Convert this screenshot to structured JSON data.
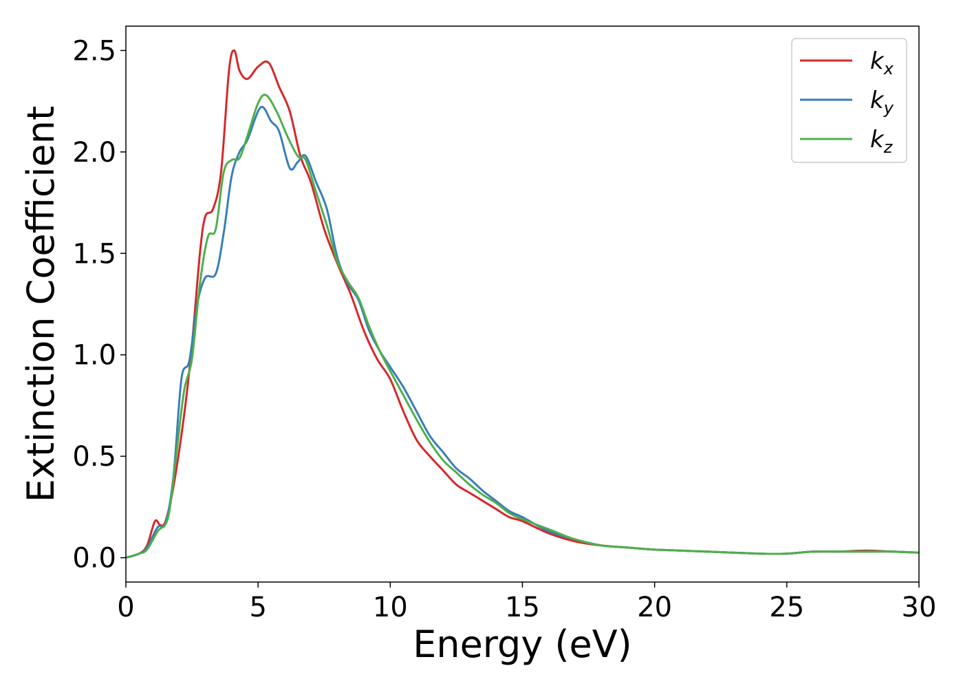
{
  "chart_data": {
    "type": "line",
    "title": "",
    "xlabel": "Energy (eV)",
    "ylabel": "Extinction Coefficient",
    "xlim": [
      0,
      30
    ],
    "ylim": [
      -0.12,
      2.62
    ],
    "xticks": [
      0,
      5,
      10,
      15,
      20,
      25,
      30
    ],
    "xtick_labels": [
      "0",
      "5",
      "10",
      "15",
      "20",
      "25",
      "30"
    ],
    "yticks": [
      0.0,
      0.5,
      1.0,
      1.5,
      2.0,
      2.5
    ],
    "ytick_labels": [
      "0.0",
      "0.5",
      "1.0",
      "1.5",
      "2.0",
      "2.5"
    ],
    "grid": false,
    "legend": {
      "position": "top-right",
      "entries": [
        {
          "base": "k",
          "sub": "x"
        },
        {
          "base": "k",
          "sub": "y"
        },
        {
          "base": "k",
          "sub": "z"
        }
      ]
    },
    "series": [
      {
        "name": "k_x",
        "color": "#d62728",
        "points": [
          [
            0,
            0
          ],
          [
            0.5,
            0.02
          ],
          [
            0.8,
            0.06
          ],
          [
            1.1,
            0.18
          ],
          [
            1.3,
            0.16
          ],
          [
            1.5,
            0.18
          ],
          [
            1.8,
            0.35
          ],
          [
            2.2,
            0.7
          ],
          [
            2.5,
            1.05
          ],
          [
            2.8,
            1.5
          ],
          [
            3.0,
            1.68
          ],
          [
            3.3,
            1.72
          ],
          [
            3.6,
            1.9
          ],
          [
            3.9,
            2.4
          ],
          [
            4.1,
            2.5
          ],
          [
            4.3,
            2.4
          ],
          [
            4.6,
            2.36
          ],
          [
            5.0,
            2.42
          ],
          [
            5.4,
            2.44
          ],
          [
            5.8,
            2.32
          ],
          [
            6.2,
            2.2
          ],
          [
            6.6,
            1.98
          ],
          [
            7.0,
            1.85
          ],
          [
            7.5,
            1.62
          ],
          [
            8.0,
            1.45
          ],
          [
            8.5,
            1.3
          ],
          [
            9.0,
            1.12
          ],
          [
            9.5,
            0.98
          ],
          [
            10.0,
            0.88
          ],
          [
            10.5,
            0.72
          ],
          [
            11.0,
            0.58
          ],
          [
            11.5,
            0.5
          ],
          [
            12.0,
            0.43
          ],
          [
            12.5,
            0.36
          ],
          [
            13.0,
            0.32
          ],
          [
            13.5,
            0.28
          ],
          [
            14.0,
            0.24
          ],
          [
            14.5,
            0.2
          ],
          [
            15.0,
            0.18
          ],
          [
            16.0,
            0.12
          ],
          [
            17.0,
            0.08
          ],
          [
            18.0,
            0.06
          ],
          [
            19.0,
            0.05
          ],
          [
            20.0,
            0.04
          ],
          [
            22.0,
            0.03
          ],
          [
            24.0,
            0.02
          ],
          [
            25.0,
            0.02
          ],
          [
            26.0,
            0.03
          ],
          [
            27.0,
            0.03
          ],
          [
            28.0,
            0.035
          ],
          [
            29.0,
            0.03
          ],
          [
            30.0,
            0.025
          ]
        ]
      },
      {
        "name": "k_y",
        "color": "#377eb8",
        "points": [
          [
            0,
            0
          ],
          [
            0.5,
            0.02
          ],
          [
            0.8,
            0.05
          ],
          [
            1.2,
            0.15
          ],
          [
            1.5,
            0.17
          ],
          [
            1.8,
            0.4
          ],
          [
            2.1,
            0.88
          ],
          [
            2.4,
            0.97
          ],
          [
            2.7,
            1.25
          ],
          [
            3.0,
            1.38
          ],
          [
            3.4,
            1.4
          ],
          [
            3.7,
            1.6
          ],
          [
            4.0,
            1.88
          ],
          [
            4.3,
            2.0
          ],
          [
            4.6,
            2.06
          ],
          [
            5.1,
            2.22
          ],
          [
            5.5,
            2.15
          ],
          [
            5.8,
            2.1
          ],
          [
            6.2,
            1.92
          ],
          [
            6.5,
            1.95
          ],
          [
            6.8,
            1.98
          ],
          [
            7.2,
            1.85
          ],
          [
            7.6,
            1.72
          ],
          [
            8.0,
            1.48
          ],
          [
            8.4,
            1.35
          ],
          [
            8.8,
            1.27
          ],
          [
            9.2,
            1.12
          ],
          [
            9.6,
            1.02
          ],
          [
            10.0,
            0.94
          ],
          [
            10.5,
            0.84
          ],
          [
            11.0,
            0.72
          ],
          [
            11.5,
            0.6
          ],
          [
            12.0,
            0.52
          ],
          [
            12.5,
            0.44
          ],
          [
            13.0,
            0.39
          ],
          [
            13.5,
            0.33
          ],
          [
            14.0,
            0.28
          ],
          [
            14.5,
            0.23
          ],
          [
            15.0,
            0.2
          ],
          [
            16.0,
            0.13
          ],
          [
            17.0,
            0.09
          ],
          [
            18.0,
            0.06
          ],
          [
            19.0,
            0.05
          ],
          [
            20.0,
            0.04
          ],
          [
            22.0,
            0.03
          ],
          [
            24.0,
            0.02
          ],
          [
            25.0,
            0.02
          ],
          [
            26.0,
            0.03
          ],
          [
            27.0,
            0.03
          ],
          [
            28.0,
            0.03
          ],
          [
            29.0,
            0.03
          ],
          [
            30.0,
            0.025
          ]
        ]
      },
      {
        "name": "k_z",
        "color": "#4daf4a",
        "points": [
          [
            0,
            0
          ],
          [
            0.5,
            0.02
          ],
          [
            0.8,
            0.04
          ],
          [
            1.2,
            0.13
          ],
          [
            1.6,
            0.2
          ],
          [
            1.9,
            0.5
          ],
          [
            2.2,
            0.82
          ],
          [
            2.5,
            0.98
          ],
          [
            2.8,
            1.35
          ],
          [
            3.1,
            1.58
          ],
          [
            3.4,
            1.62
          ],
          [
            3.7,
            1.9
          ],
          [
            4.0,
            1.96
          ],
          [
            4.3,
            1.97
          ],
          [
            4.6,
            2.08
          ],
          [
            5.0,
            2.24
          ],
          [
            5.3,
            2.28
          ],
          [
            5.7,
            2.2
          ],
          [
            6.1,
            2.08
          ],
          [
            6.5,
            1.98
          ],
          [
            6.8,
            1.96
          ],
          [
            7.2,
            1.8
          ],
          [
            7.6,
            1.64
          ],
          [
            8.0,
            1.46
          ],
          [
            8.4,
            1.36
          ],
          [
            8.8,
            1.28
          ],
          [
            9.2,
            1.14
          ],
          [
            9.6,
            1.02
          ],
          [
            10.0,
            0.92
          ],
          [
            10.5,
            0.8
          ],
          [
            11.0,
            0.68
          ],
          [
            11.5,
            0.57
          ],
          [
            12.0,
            0.48
          ],
          [
            12.5,
            0.42
          ],
          [
            13.0,
            0.36
          ],
          [
            13.5,
            0.31
          ],
          [
            14.0,
            0.27
          ],
          [
            14.5,
            0.22
          ],
          [
            15.0,
            0.19
          ],
          [
            16.0,
            0.14
          ],
          [
            17.0,
            0.09
          ],
          [
            18.0,
            0.06
          ],
          [
            19.0,
            0.05
          ],
          [
            20.0,
            0.04
          ],
          [
            22.0,
            0.03
          ],
          [
            24.0,
            0.02
          ],
          [
            25.0,
            0.02
          ],
          [
            26.0,
            0.03
          ],
          [
            27.0,
            0.03
          ],
          [
            28.0,
            0.03
          ],
          [
            29.0,
            0.03
          ],
          [
            30.0,
            0.025
          ]
        ]
      }
    ]
  }
}
